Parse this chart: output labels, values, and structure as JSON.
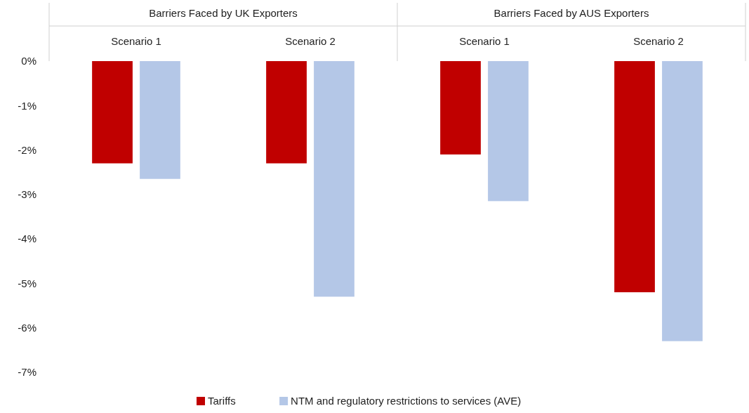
{
  "chart_data": {
    "type": "bar",
    "categories": [
      "Scenario 1",
      "Scenario 2",
      "Scenario 1",
      "Scenario 2"
    ],
    "annotations": [
      "Barriers Faced by UK Exporters",
      "Barriers Faced by AUS Exporters"
    ],
    "series": [
      {
        "name": "Tariffs",
        "color": "#c00000",
        "values": [
          -2.3,
          -2.3,
          -2.1,
          -5.2
        ]
      },
      {
        "name": "NTM and regulatory restrictions to services (AVE)",
        "color": "#b4c7e7",
        "values": [
          -2.65,
          -5.3,
          -3.15,
          -6.3
        ]
      }
    ],
    "ylim": [
      -7,
      0
    ],
    "yticks": [
      {
        "value": 0,
        "label": "0%"
      },
      {
        "value": -1,
        "label": "-1%"
      },
      {
        "value": -2,
        "label": "-2%"
      },
      {
        "value": -3,
        "label": "-3%"
      },
      {
        "value": -4,
        "label": "-4%"
      },
      {
        "value": -5,
        "label": "-5%"
      },
      {
        "value": -6,
        "label": "-6%"
      },
      {
        "value": -7,
        "label": "-7%"
      }
    ],
    "grid": false,
    "legend": "bottom"
  }
}
